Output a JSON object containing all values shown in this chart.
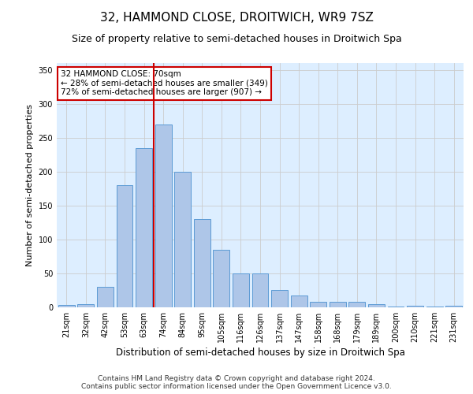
{
  "title": "32, HAMMOND CLOSE, DROITWICH, WR9 7SZ",
  "subtitle": "Size of property relative to semi-detached houses in Droitwich Spa",
  "xlabel": "Distribution of semi-detached houses by size in Droitwich Spa",
  "ylabel": "Number of semi-detached properties",
  "footer_line1": "Contains HM Land Registry data © Crown copyright and database right 2024.",
  "footer_line2": "Contains public sector information licensed under the Open Government Licence v3.0.",
  "annotation_title": "32 HAMMOND CLOSE: 70sqm",
  "annotation_line1": "← 28% of semi-detached houses are smaller (349)",
  "annotation_line2": "72% of semi-detached houses are larger (907) →",
  "bar_categories": [
    "21sqm",
    "32sqm",
    "42sqm",
    "53sqm",
    "63sqm",
    "74sqm",
    "84sqm",
    "95sqm",
    "105sqm",
    "116sqm",
    "126sqm",
    "137sqm",
    "147sqm",
    "158sqm",
    "168sqm",
    "179sqm",
    "189sqm",
    "200sqm",
    "210sqm",
    "221sqm",
    "231sqm"
  ],
  "bar_values": [
    3,
    5,
    30,
    180,
    235,
    270,
    200,
    130,
    85,
    50,
    50,
    25,
    18,
    8,
    8,
    8,
    5,
    1,
    2,
    1,
    2
  ],
  "bar_color": "#aec6e8",
  "bar_edge_color": "#5b9bd5",
  "highlight_line_color": "#cc0000",
  "ylim": [
    0,
    360
  ],
  "yticks": [
    0,
    50,
    100,
    150,
    200,
    250,
    300,
    350
  ],
  "grid_color": "#cccccc",
  "bg_color": "#ddeeff",
  "annotation_box_color": "#ffffff",
  "annotation_box_edge": "#cc0000",
  "title_fontsize": 11,
  "subtitle_fontsize": 9,
  "xlabel_fontsize": 8.5,
  "ylabel_fontsize": 8,
  "tick_fontsize": 7,
  "annotation_fontsize": 7.5,
  "footer_fontsize": 6.5
}
